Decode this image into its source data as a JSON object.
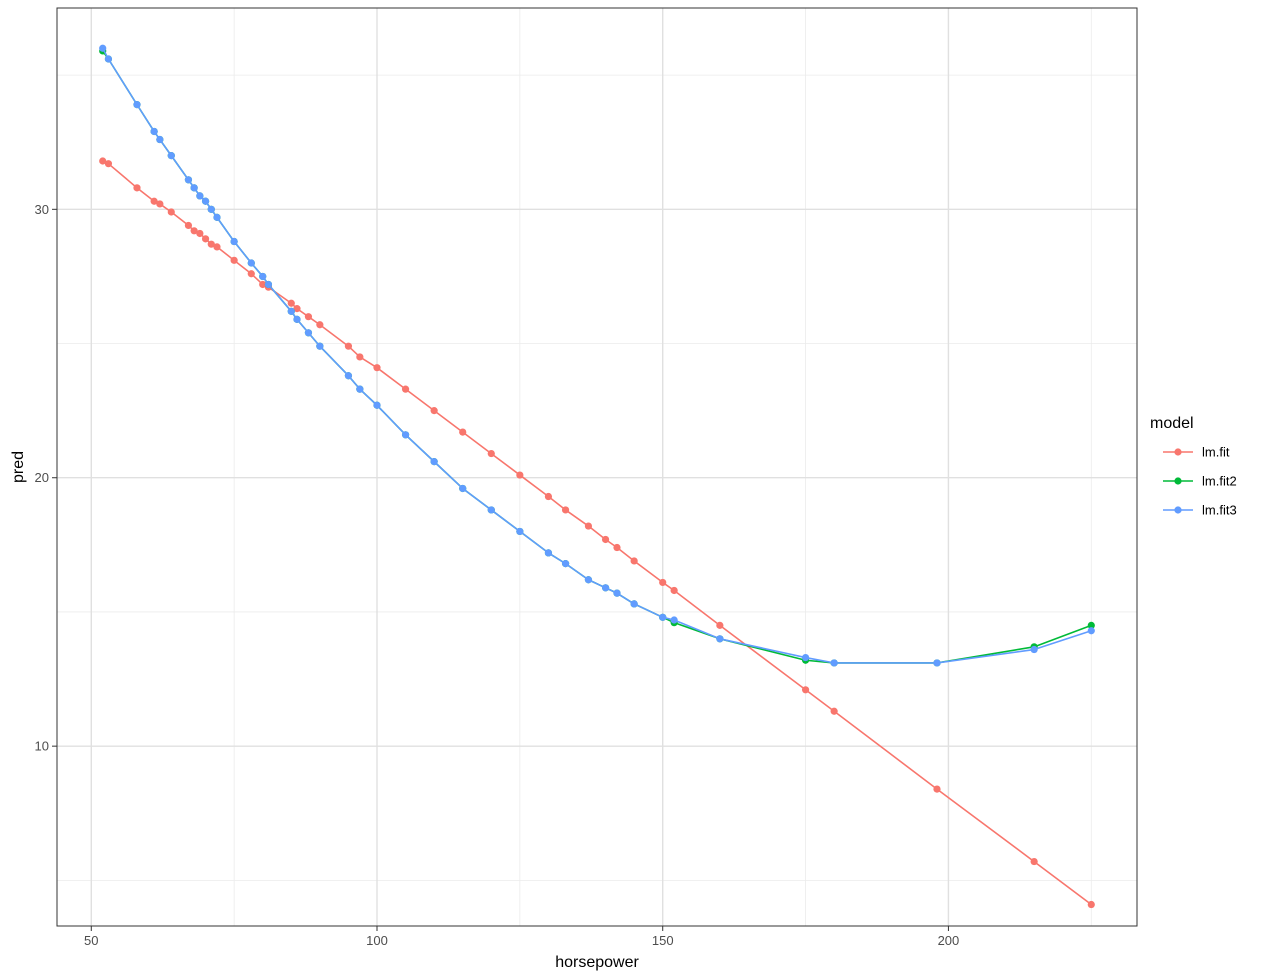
{
  "chart_data": {
    "type": "line",
    "xlabel": "horsepower",
    "ylabel": "pred",
    "xlim": [
      44,
      233
    ],
    "ylim": [
      3.3,
      37.5
    ],
    "xticks": [
      50,
      100,
      150,
      200
    ],
    "xticks_minor": [
      75,
      125,
      175,
      225
    ],
    "yticks": [
      10,
      20,
      30
    ],
    "yticks_minor": [
      5,
      15,
      25,
      35
    ],
    "grid": true,
    "legend": {
      "title": "model",
      "position": "right",
      "entries": [
        "lm.fit",
        "lm.fit2",
        "lm.fit3"
      ]
    },
    "series": [
      {
        "name": "lm.fit",
        "color": "#F8766D",
        "x": [
          52,
          53,
          58,
          61,
          62,
          64,
          67,
          68,
          69,
          70,
          71,
          72,
          75,
          78,
          80,
          81,
          85,
          86,
          88,
          90,
          95,
          97,
          100,
          105,
          110,
          115,
          120,
          125,
          130,
          133,
          137,
          140,
          142,
          145,
          150,
          152,
          160,
          175,
          180,
          198,
          215,
          225
        ],
        "y": [
          31.8,
          31.7,
          30.8,
          30.3,
          30.2,
          29.9,
          29.4,
          29.2,
          29.1,
          28.9,
          28.7,
          28.6,
          28.1,
          27.6,
          27.2,
          27.1,
          26.5,
          26.3,
          26.0,
          25.7,
          24.9,
          24.5,
          24.1,
          23.3,
          22.5,
          21.7,
          20.9,
          20.1,
          19.3,
          18.8,
          18.2,
          17.7,
          17.4,
          16.9,
          16.1,
          15.8,
          14.5,
          12.1,
          11.3,
          8.4,
          5.7,
          4.1
        ]
      },
      {
        "name": "lm.fit2",
        "color": "#00BA38",
        "x": [
          52,
          53,
          58,
          61,
          62,
          64,
          67,
          68,
          69,
          70,
          71,
          72,
          75,
          78,
          80,
          81,
          85,
          86,
          88,
          90,
          95,
          97,
          100,
          105,
          110,
          115,
          120,
          125,
          130,
          133,
          137,
          140,
          142,
          145,
          150,
          152,
          160,
          175,
          180,
          198,
          215,
          225
        ],
        "y": [
          35.9,
          35.6,
          33.9,
          32.9,
          32.6,
          32.0,
          31.1,
          30.8,
          30.5,
          30.3,
          30.0,
          29.7,
          28.8,
          28.0,
          27.5,
          27.2,
          26.2,
          25.9,
          25.4,
          24.9,
          23.8,
          23.3,
          22.7,
          21.6,
          20.6,
          19.6,
          18.8,
          18.0,
          17.2,
          16.8,
          16.2,
          15.9,
          15.7,
          15.3,
          14.8,
          14.6,
          14.0,
          13.2,
          13.1,
          13.1,
          13.7,
          14.5
        ]
      },
      {
        "name": "lm.fit3",
        "color": "#619CFF",
        "x": [
          52,
          53,
          58,
          61,
          62,
          64,
          67,
          68,
          69,
          70,
          71,
          72,
          75,
          78,
          80,
          81,
          85,
          86,
          88,
          90,
          95,
          97,
          100,
          105,
          110,
          115,
          120,
          125,
          130,
          133,
          137,
          140,
          142,
          145,
          150,
          152,
          160,
          175,
          180,
          198,
          215,
          225
        ],
        "y": [
          36.0,
          35.6,
          33.9,
          32.9,
          32.6,
          32.0,
          31.1,
          30.8,
          30.5,
          30.3,
          30.0,
          29.7,
          28.8,
          28.0,
          27.5,
          27.2,
          26.2,
          25.9,
          25.4,
          24.9,
          23.8,
          23.3,
          22.7,
          21.6,
          20.6,
          19.6,
          18.8,
          18.0,
          17.2,
          16.8,
          16.2,
          15.9,
          15.7,
          15.3,
          14.8,
          14.7,
          14.0,
          13.3,
          13.1,
          13.1,
          13.6,
          14.3
        ]
      }
    ]
  }
}
